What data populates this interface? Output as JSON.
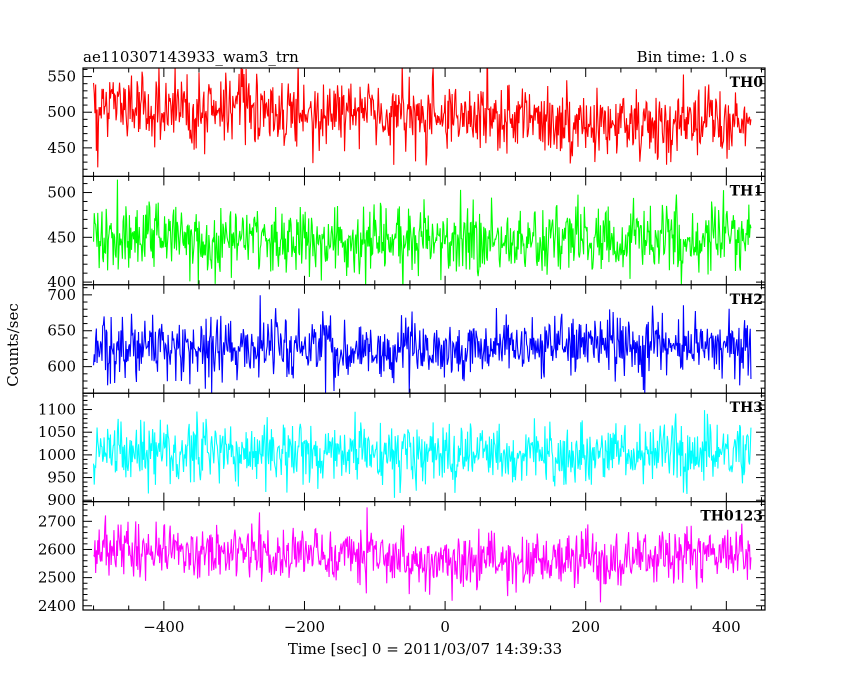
{
  "header": {
    "title_left": "ae110307143933_wam3_trn",
    "title_right": "Bin time: 1.0 s"
  },
  "chart_data": {
    "type": "line",
    "xlabel": "Time [sec] 0 = 2011/03/07 14:39:33",
    "ylabel": "Counts/sec",
    "xlim": [
      -515,
      455
    ],
    "xticks": [
      -400,
      -200,
      0,
      200,
      400
    ],
    "grid": false,
    "bin_time_s": 1.0,
    "x_range": [
      -500,
      435
    ],
    "panels": [
      {
        "name": "TH0",
        "color": "#ff0000",
        "ylim": [
          410,
          562
        ],
        "yticks": [
          450,
          500,
          550
        ],
        "mean_trend": [
          [
            -500,
            507
          ],
          [
            -250,
            503
          ],
          [
            0,
            492
          ],
          [
            200,
            488
          ],
          [
            435,
            480
          ]
        ],
        "noise_sd": 24
      },
      {
        "name": "TH1",
        "color": "#00ff00",
        "ylim": [
          397,
          518
        ],
        "yticks": [
          400,
          450,
          500
        ],
        "mean_trend": [
          [
            -500,
            448
          ],
          [
            0,
            447
          ],
          [
            435,
            449
          ]
        ],
        "noise_sd": 19
      },
      {
        "name": "TH2",
        "color": "#0000ff",
        "ylim": [
          563,
          714
        ],
        "yticks": [
          600,
          650,
          700
        ],
        "mean_trend": [
          [
            -500,
            628
          ],
          [
            0,
            625
          ],
          [
            435,
            630
          ]
        ],
        "noise_sd": 22
      },
      {
        "name": "TH3",
        "color": "#00ffff",
        "ylim": [
          897,
          1136
        ],
        "yticks": [
          900,
          950,
          1000,
          1050,
          1100
        ],
        "mean_trend": [
          [
            -500,
            1010
          ],
          [
            0,
            1002
          ],
          [
            435,
            1005
          ]
        ],
        "noise_sd": 33
      },
      {
        "name": "TH0123",
        "color": "#ff00ff",
        "ylim": [
          2385,
          2770
        ],
        "yticks": [
          2400,
          2500,
          2600,
          2700
        ],
        "mean_trend": [
          [
            -500,
            2598
          ],
          [
            -200,
            2585
          ],
          [
            0,
            2560
          ],
          [
            200,
            2560
          ],
          [
            435,
            2590
          ]
        ],
        "noise_sd": 50
      }
    ]
  }
}
